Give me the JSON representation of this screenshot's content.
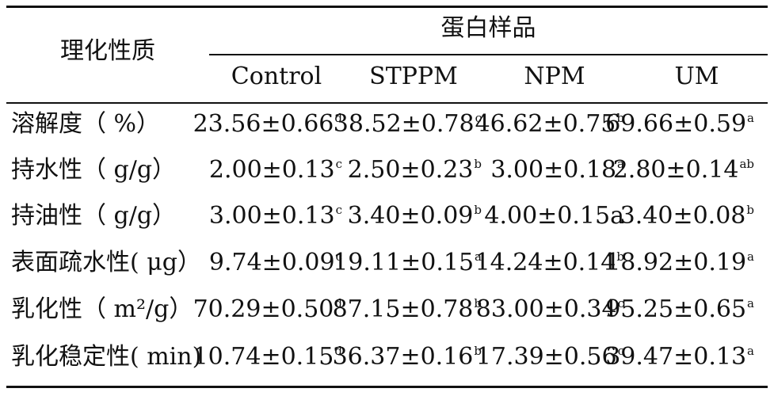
{
  "header": {
    "property_label": "理化性质",
    "group_label": "蛋白样品",
    "columns": [
      "Control",
      "STPPM",
      "NPM",
      "UM"
    ]
  },
  "rows": [
    {
      "label": "溶解度（ %）",
      "cells": [
        {
          "v": "23.56±0.66",
          "s": "d"
        },
        {
          "v": "38.52±0.78",
          "s": "c"
        },
        {
          "v": "46.62±0.75",
          "s": "b"
        },
        {
          "v": "69.66±0.59",
          "s": "a"
        }
      ]
    },
    {
      "label": "持水性（ g/g）",
      "cells": [
        {
          "v": "2.00±0.13",
          "s": "c"
        },
        {
          "v": "2.50±0.23",
          "s": "b"
        },
        {
          "v": "3.00±0.18",
          "s": "a"
        },
        {
          "v": "2.80±0.14",
          "s": "ab"
        }
      ]
    },
    {
      "label": "持油性（ g/g）",
      "cells": [
        {
          "v": "3.00±0.13",
          "s": "c"
        },
        {
          "v": "3.40±0.09",
          "s": "b"
        },
        {
          "v": "4.00±0.15a",
          "s": ""
        },
        {
          "v": "3.40±0.08",
          "s": "b"
        }
      ]
    },
    {
      "label": "表面疏水性( μg）",
      "cells": [
        {
          "v": "9.74±0.09",
          "s": "c"
        },
        {
          "v": "19.11±0.15",
          "s": "a"
        },
        {
          "v": "14.24±0.14",
          "s": "b"
        },
        {
          "v": "18.92±0.19",
          "s": "a"
        }
      ]
    },
    {
      "label": "乳化性（ m²/g）",
      "cells": [
        {
          "v": "70.29±0.50",
          "s": "d"
        },
        {
          "v": "87.15±0.78",
          "s": "b"
        },
        {
          "v": "83.00±0.34",
          "s": "c"
        },
        {
          "v": "95.25±0.65",
          "s": "a"
        }
      ]
    },
    {
      "label": "乳化稳定性( min)",
      "cells": [
        {
          "v": "10.74±0.15",
          "s": "d"
        },
        {
          "v": "36.37±0.16",
          "s": "b"
        },
        {
          "v": "17.39±0.56",
          "s": "c"
        },
        {
          "v": "39.47±0.13",
          "s": "a"
        }
      ]
    }
  ]
}
